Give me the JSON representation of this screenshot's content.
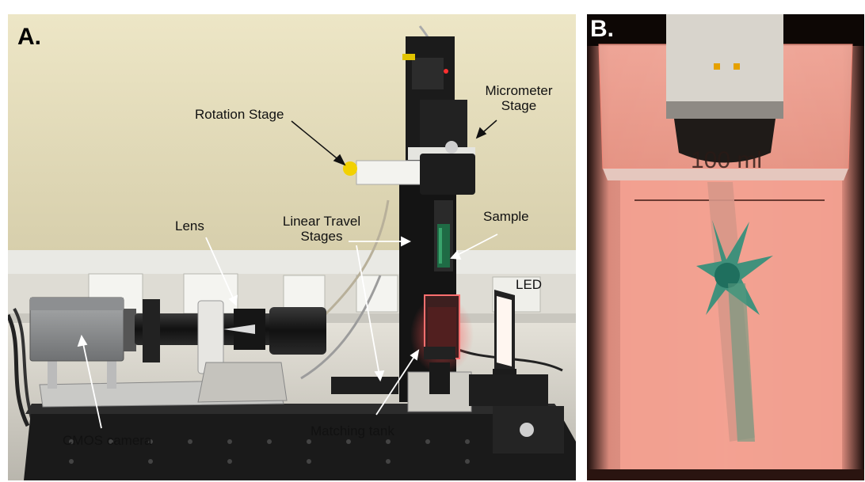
{
  "panel_a": {
    "tag": "A.",
    "labels": {
      "rotation_stage": "Rotation Stage",
      "micrometer_stage": "Micrometer Stage",
      "linear_travel_stages": "Linear Travel Stages",
      "lens": "Lens",
      "sample": "Sample",
      "led": "LED",
      "cmos_camera": "CMOS camera",
      "matching_tank": "Matching tank"
    }
  },
  "panel_b": {
    "tag": "B.",
    "beaker_marking": "100 ml"
  }
}
